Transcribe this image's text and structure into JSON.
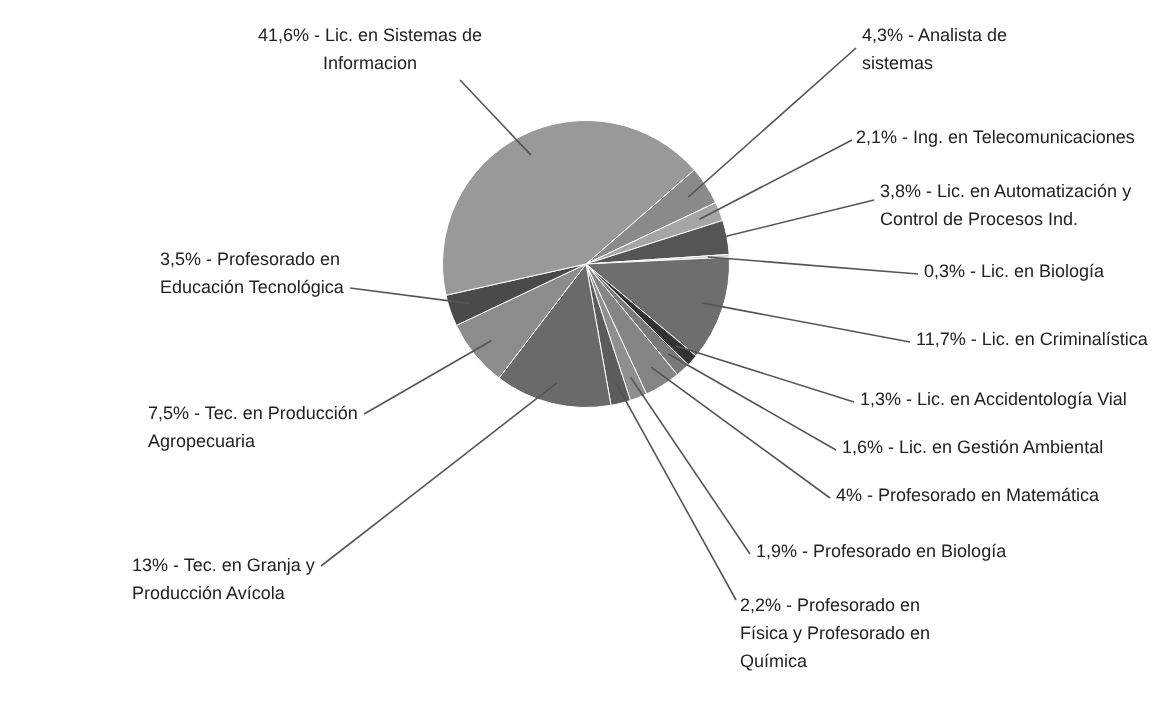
{
  "chart_data": {
    "type": "pie",
    "categories": [
      "Analista de sistemas",
      "Ing. en Telecomunicaciones",
      "Lic. en Automatización y Control de Procesos Ind.",
      "Lic. en Biología",
      "Lic. en Criminalística",
      "Lic. en Accidentología Vial",
      "Lic. en Gestión Ambiental",
      "Profesorado en Matemática",
      "Profesorado en Biología",
      "Profesorado en Física y Profesorado en Química",
      "Tec. en Granja y Producción Avícola",
      "Tec. en Producción Agropecuaria",
      "Profesorado en Educación Tecnológica",
      "Lic. en Sistemas de Informacion"
    ],
    "values": [
      4.3,
      2.1,
      3.8,
      0.3,
      11.7,
      1.3,
      1.6,
      4,
      1.9,
      2.2,
      13,
      7.5,
      3.5,
      41.6
    ],
    "value_labels": [
      "4,3%",
      "2,1%",
      "3,8%",
      "0,3%",
      "11,7%",
      "1,3%",
      "1,6%",
      "4%",
      "1,9%",
      "2,2%",
      "13%",
      "7,5%",
      "3,5%",
      "41,6%"
    ],
    "colors": [
      "#8a8a8a",
      "#a5a5a5",
      "#555555",
      "#c8c8c8",
      "#6e6e6e",
      "#333333",
      "#7a7a7a",
      "#858585",
      "#8f8f8f",
      "#5c5c5c",
      "#6a6a6a",
      "#8c8c8c",
      "#4a4a4a",
      "#999999"
    ],
    "legend": false
  }
}
